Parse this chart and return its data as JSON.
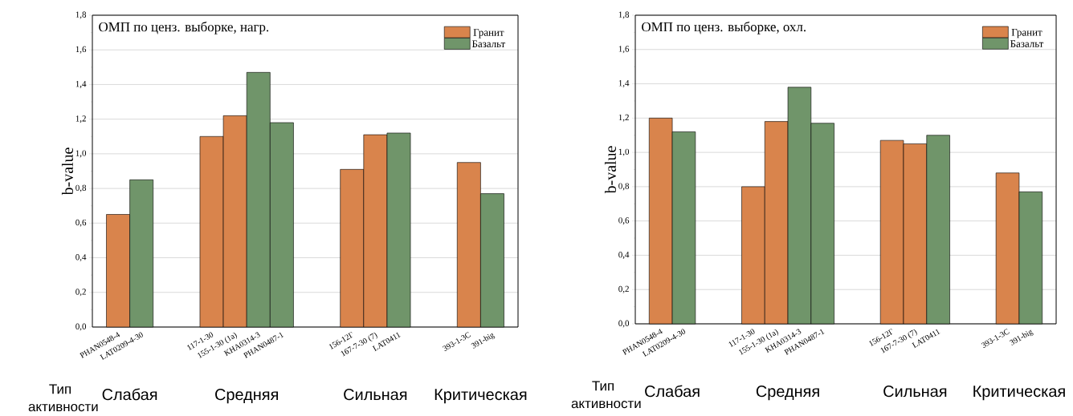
{
  "chart_data": [
    {
      "type": "bar",
      "title": "ОМП по ценз. выборке, нагр.",
      "ylabel": "b-value",
      "xlabel": "Тип активности",
      "categories": [
        "PHAN0548-4",
        "LAT0209-4-30",
        null,
        null,
        "117-1-30",
        "155-1-30 (1a)",
        "KHA0314-3",
        "PHAN0487-1",
        null,
        null,
        "156-12Г",
        "167-7-30 (7)",
        "LAT0411",
        null,
        null,
        "393-1-3C",
        "391-big"
      ],
      "series": [
        {
          "name": "Гранит",
          "color": "#d9844c",
          "values": [
            0.65,
            null,
            null,
            null,
            1.1,
            1.22,
            null,
            null,
            null,
            null,
            0.91,
            1.11,
            null,
            null,
            null,
            0.95,
            null
          ]
        },
        {
          "name": "Базальт",
          "color": "#70956a",
          "values": [
            null,
            0.85,
            null,
            null,
            null,
            null,
            1.47,
            1.18,
            null,
            null,
            null,
            null,
            1.12,
            null,
            null,
            null,
            0.77
          ]
        }
      ],
      "annotations": [
        "Слабая",
        "Средняя",
        "Сильная",
        "Критическая"
      ],
      "ylim": [
        0,
        1.8
      ],
      "yticks": [
        {
          "value": 0,
          "label": "0,0"
        },
        {
          "value": 0.2,
          "label": "0,2"
        },
        {
          "value": 0.4,
          "label": "0,4"
        },
        {
          "value": 0.6,
          "label": "0,6"
        },
        {
          "value": 0.8,
          "label": "0,8"
        },
        {
          "value": 1.0,
          "label": "1,0"
        },
        {
          "value": 1.2,
          "label": "1,2"
        },
        {
          "value": 1.4,
          "label": "1,4"
        },
        {
          "value": 1.6,
          "label": "1,6"
        },
        {
          "value": 1.8,
          "label": "1,8"
        }
      ],
      "grid": "y",
      "legend": "top right"
    },
    {
      "type": "bar",
      "title": "ОМП по ценз. выборке, охл.",
      "ylabel": "b-value",
      "xlabel": "Тип активности",
      "categories": [
        "PHAN0548-4",
        "LAT0209-4-30",
        null,
        null,
        "117-1-30",
        "155-1-30 (1a)",
        "KHA0314-3",
        "PHAN0487-1",
        null,
        null,
        "156-12Г",
        "167-7-30 (7)",
        "LAT0411",
        null,
        null,
        "393-1-3C",
        "391-big"
      ],
      "series": [
        {
          "name": "Гранит",
          "color": "#d9844c",
          "values": [
            1.2,
            null,
            null,
            null,
            0.8,
            1.18,
            null,
            null,
            null,
            null,
            1.07,
            1.05,
            null,
            null,
            null,
            0.88,
            null
          ]
        },
        {
          "name": "Базальт",
          "color": "#70956a",
          "values": [
            null,
            1.12,
            null,
            null,
            null,
            null,
            1.38,
            1.17,
            null,
            null,
            null,
            null,
            1.1,
            null,
            null,
            null,
            0.77
          ]
        }
      ],
      "annotations": [
        "Слабая",
        "Средняя",
        "Сильная",
        "Критическая"
      ],
      "ylim": [
        0,
        1.8
      ],
      "yticks": [
        {
          "value": 0,
          "label": "0,0"
        },
        {
          "value": 0.2,
          "label": "0,2"
        },
        {
          "value": 0.4,
          "label": "0,4"
        },
        {
          "value": 0.6,
          "label": "0,6"
        },
        {
          "value": 0.8,
          "label": "0,8"
        },
        {
          "value": 1.0,
          "label": "1,0"
        },
        {
          "value": 1.2,
          "label": "1,2"
        },
        {
          "value": 1.4,
          "label": "1,4"
        },
        {
          "value": 1.6,
          "label": "1,6"
        },
        {
          "value": 1.8,
          "label": "1,8"
        }
      ],
      "grid": "y",
      "legend": "top right"
    }
  ]
}
